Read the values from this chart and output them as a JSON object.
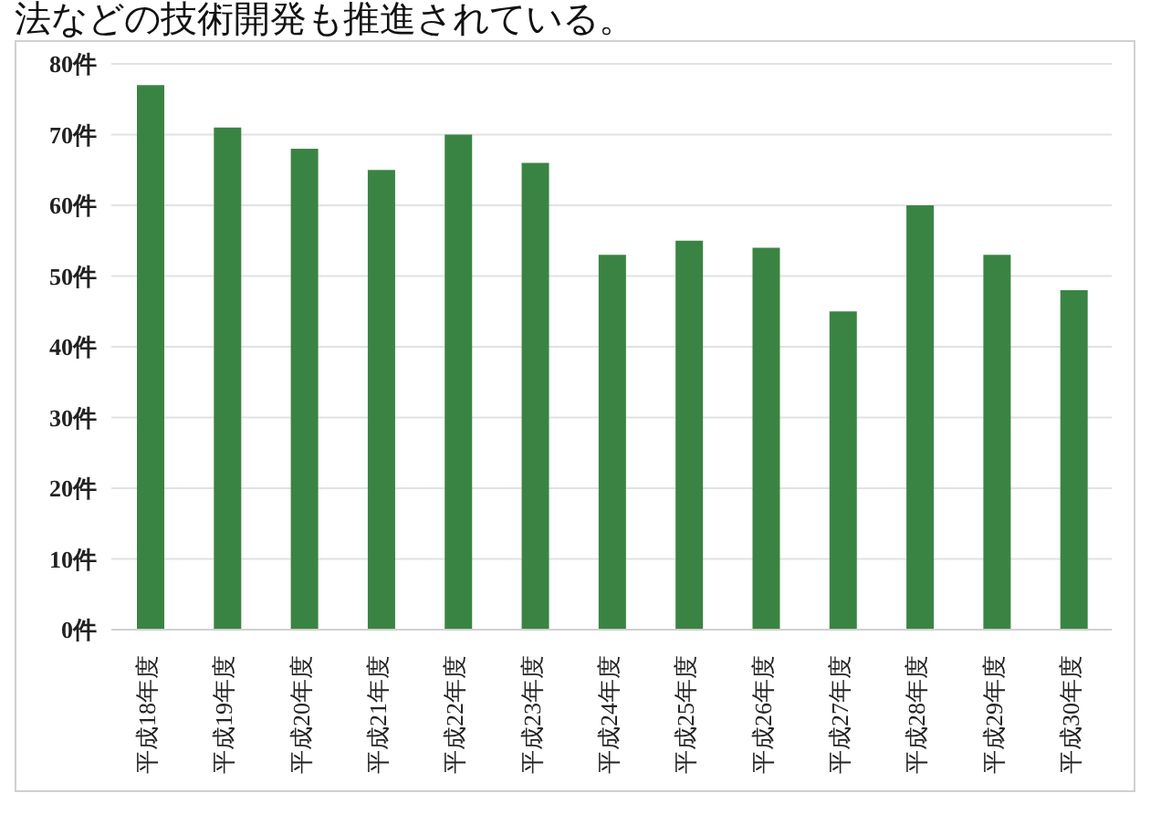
{
  "chart_data": {
    "type": "bar",
    "annotations": [
      "法などの技術開発も推進されている。"
    ],
    "categories": [
      "平成18年度",
      "平成19年度",
      "平成20年度",
      "平成21年度",
      "平成22年度",
      "平成23年度",
      "平成24年度",
      "平成25年度",
      "平成26年度",
      "平成27年度",
      "平成28年度",
      "平成29年度",
      "平成30年度"
    ],
    "values": [
      77,
      71,
      68,
      65,
      70,
      66,
      53,
      55,
      54,
      45,
      60,
      53,
      48
    ],
    "color": "#3a8443",
    "ylim": [
      0,
      80
    ],
    "yticks": [
      {
        "value": 0,
        "label": "0件"
      },
      {
        "value": 10,
        "label": "10件"
      },
      {
        "value": 20,
        "label": "20件"
      },
      {
        "value": 30,
        "label": "30件"
      },
      {
        "value": 40,
        "label": "40件"
      },
      {
        "value": 50,
        "label": "50件"
      },
      {
        "value": 60,
        "label": "60件"
      },
      {
        "value": 70,
        "label": "70件"
      },
      {
        "value": 80,
        "label": "80件"
      }
    ],
    "grid": "y"
  }
}
